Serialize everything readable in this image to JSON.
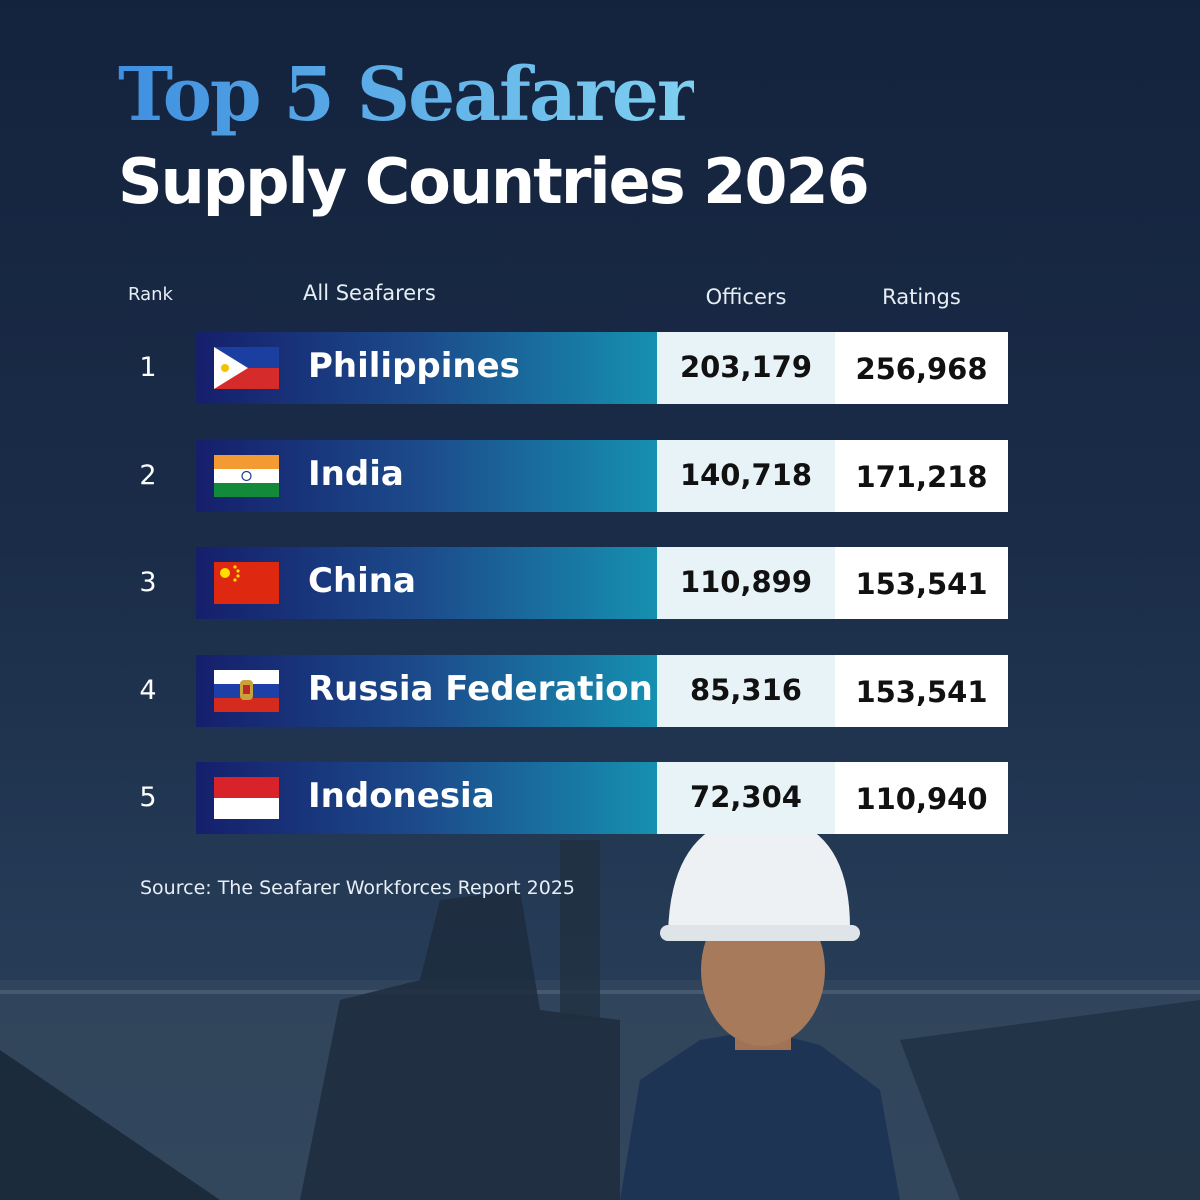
{
  "header": {
    "title_line1": "Top 5 Seafarer",
    "title_line2": "Supply Countries 2026"
  },
  "table": {
    "columns": [
      "Rank",
      "All Seafarers",
      "Officers",
      "Ratings"
    ],
    "rows": [
      [
        "1",
        "Philippines",
        "203,179",
        "256,968"
      ],
      [
        "2",
        "India",
        "140,718",
        "171,218"
      ],
      [
        "3",
        "China",
        "110,899",
        "153,541"
      ],
      [
        "4",
        "Russia Federation",
        "85,316",
        "153,541"
      ],
      [
        "5",
        "Indonesia",
        "72,304",
        "110,940"
      ]
    ]
  },
  "footer": {
    "source": "Source: The Seafarer Workforces Report 2025"
  }
}
